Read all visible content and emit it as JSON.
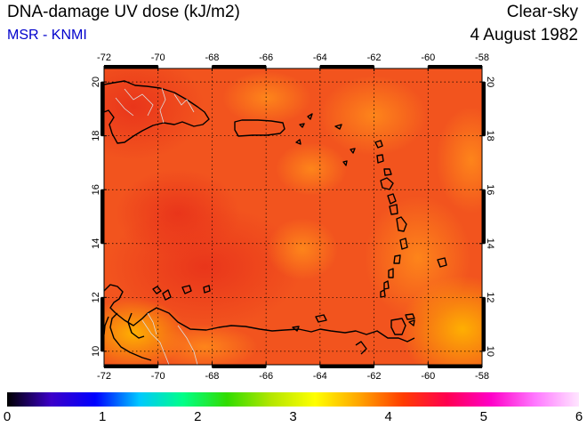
{
  "header": {
    "title": "DNA-damage UV dose (kJ/m2)",
    "subtitle": "MSR - KNMI",
    "sky_condition": "Clear-sky",
    "date": "4 August 1982"
  },
  "map": {
    "region": "Caribbean",
    "lon_range": [
      -72,
      -58
    ],
    "lat_range": [
      9.5,
      20.5
    ],
    "lon_ticks": [
      "-72",
      "-70",
      "-68",
      "-66",
      "-64",
      "-62",
      "-60",
      "-58"
    ],
    "lat_ticks": [
      "10",
      "12",
      "14",
      "16",
      "18",
      "20"
    ],
    "field_color_dominant": "#f04a1c",
    "field_color_low": "#ffa500",
    "coastline_color": "#000000",
    "border_color": "#dddddd",
    "grid": "dotted"
  },
  "colorbar": {
    "labels": [
      "0",
      "1",
      "2",
      "3",
      "4",
      "5",
      "6"
    ],
    "min": 0,
    "max": 6,
    "stops": [
      "#000000",
      "#3c00c8",
      "#0000ff",
      "#00c8ff",
      "#00ff88",
      "#32dc00",
      "#b4e600",
      "#ffff00",
      "#ffa500",
      "#ff3c00",
      "#ff0050",
      "#ff00c8",
      "#ff78ff",
      "#ffe6ff"
    ]
  }
}
